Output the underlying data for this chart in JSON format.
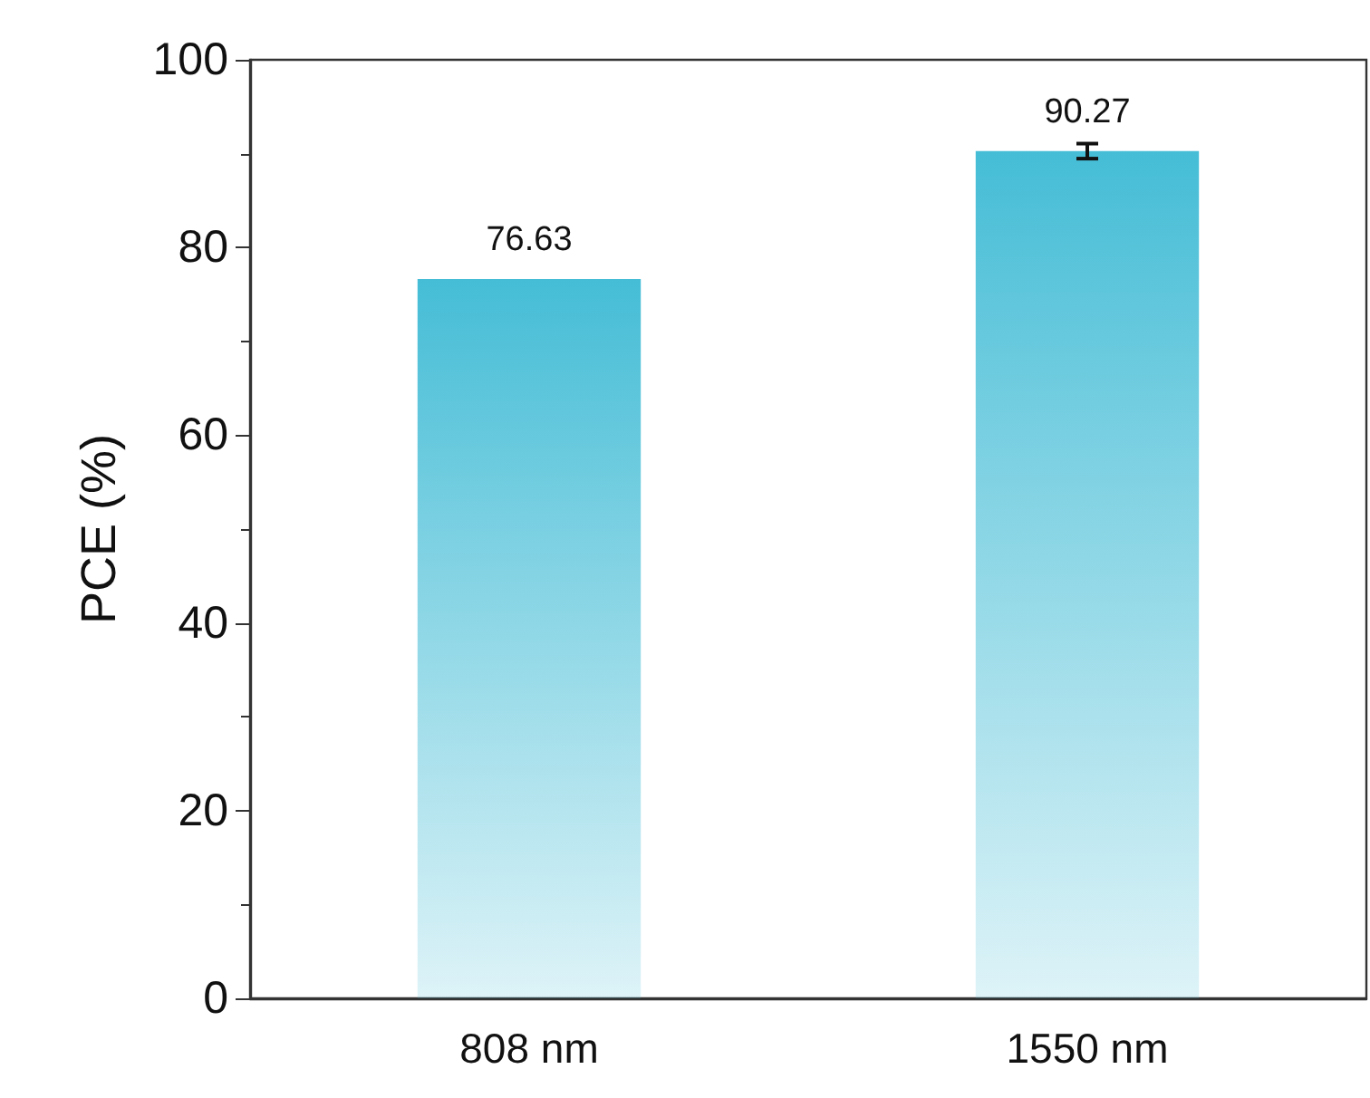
{
  "chart_data": {
    "type": "bar",
    "ylabel": "PCE (%)",
    "categories": [
      "808 nm",
      "1550 nm"
    ],
    "values": [
      76.63,
      90.27
    ],
    "errors": [
      null,
      0.8
    ],
    "color": "#45bdd6",
    "data_labels": true,
    "ylim": [
      0,
      100
    ],
    "yticks": [
      0,
      20,
      40,
      60,
      80,
      100
    ],
    "grid": false
  }
}
